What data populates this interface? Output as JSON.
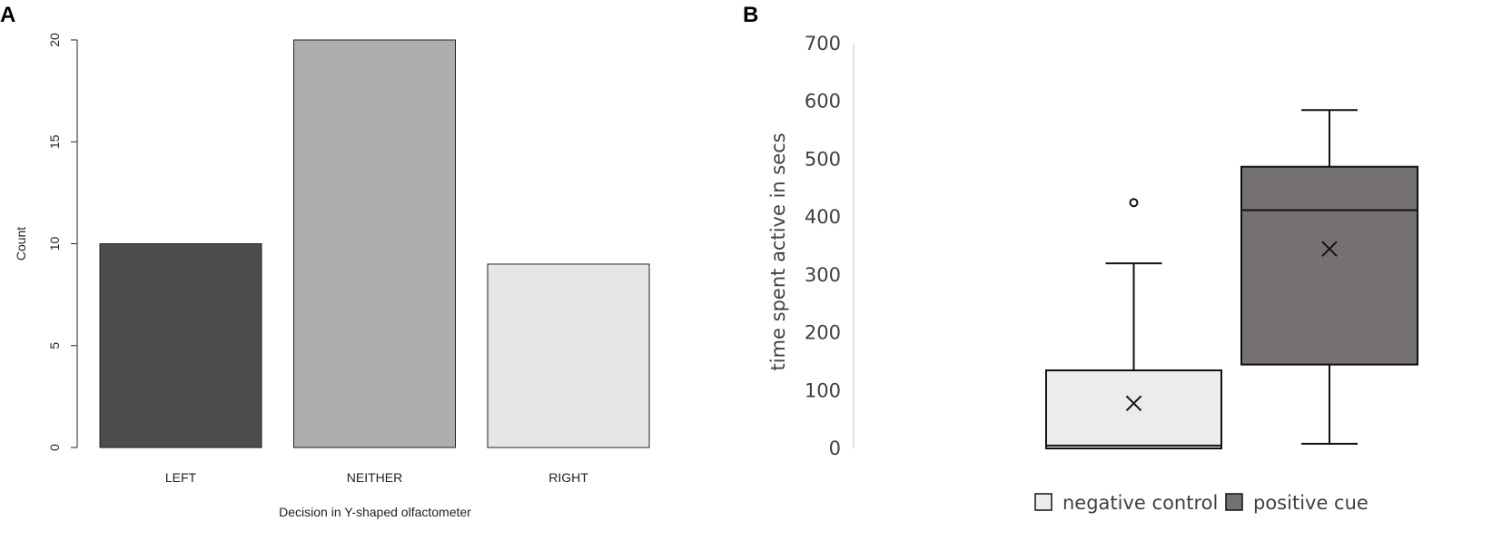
{
  "panels": {
    "a_letter": "A",
    "b_letter": "B"
  },
  "chart_data": [
    {
      "type": "bar",
      "categories": [
        "LEFT",
        "NEITHER",
        "RIGHT"
      ],
      "values": [
        10,
        20,
        9
      ],
      "colors": [
        "#4d4d4d",
        "#aeaeae",
        "#e6e6e6"
      ],
      "xlabel": "Decision in Y-shaped olfactometer",
      "ylabel": "Count",
      "ylim": [
        0,
        20
      ],
      "yticks": [
        0,
        5,
        10,
        15,
        20
      ],
      "grid": false
    },
    {
      "type": "boxplot",
      "ylabel": "time spent active in secs",
      "ylim": [
        0,
        700
      ],
      "yticks": [
        0,
        100,
        200,
        300,
        400,
        500,
        600,
        700
      ],
      "legend_position": "bottom",
      "grid": false,
      "series": [
        {
          "name": "negative control",
          "color": "#ececec",
          "whisker_low": 0,
          "q1": 0,
          "median": 5,
          "q3": 135,
          "whisker_high": 320,
          "mean": 78,
          "outliers": [
            425
          ]
        },
        {
          "name": "positive cue",
          "color": "#767171",
          "whisker_low": 8,
          "q1": 145,
          "median": 412,
          "q3": 487,
          "whisker_high": 585,
          "mean": 345,
          "outliers": []
        }
      ]
    }
  ]
}
